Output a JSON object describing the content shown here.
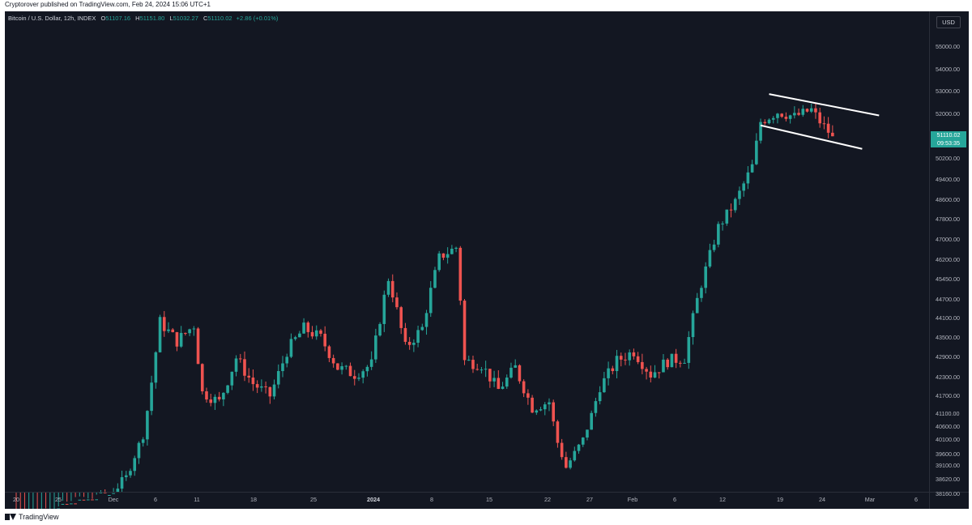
{
  "header": {
    "published_text": "Cryptorover published on TradingView.com, Feb 24, 2024 15:06 UTC+1"
  },
  "legend": {
    "symbol": "Bitcoin / U.S. Dollar, 12h, INDEX",
    "open_label": "O",
    "open": "51107.16",
    "high_label": "H",
    "high": "51151.80",
    "low_label": "L",
    "low": "51032.27",
    "close_label": "C",
    "close": "51110.02",
    "change": "+2.86 (+0.01%)"
  },
  "price_axis": {
    "currency": "USD",
    "labels": [
      "55000.00",
      "54000.00",
      "53000.00",
      "52000.00",
      "50200.00",
      "49400.00",
      "48600.00",
      "47800.00",
      "47000.00",
      "46200.00",
      "45450.00",
      "44700.00",
      "44100.00",
      "43500.00",
      "42900.00",
      "42300.00",
      "41700.00",
      "41100.00",
      "40600.00",
      "40100.00",
      "39600.00",
      "39100.00",
      "38620.00",
      "38160.00"
    ],
    "last_price": "51110.02",
    "countdown": "09:53:35"
  },
  "time_axis": {
    "labels": [
      "20",
      "25",
      "Dec",
      "6",
      "11",
      "18",
      "25",
      "2024",
      "8",
      "15",
      "22",
      "27",
      "Feb",
      "6",
      "12",
      "19",
      "24",
      "Mar",
      "6"
    ]
  },
  "colors": {
    "up": "#26a69a",
    "down": "#ef5350",
    "background": "#131722",
    "channel_lines": "#ffffff"
  },
  "footer": {
    "brand": "TradingView",
    "logo_icon": "tradingview-logo-icon"
  },
  "chart_data": {
    "type": "candlestick",
    "title": "",
    "symbol": "Bitcoin / U.S. Dollar",
    "timeframe": "12h",
    "x_range": [
      "2023-11-19",
      "2024-02-24"
    ],
    "ylim": [
      38160,
      55500
    ],
    "y_scale": "log",
    "close_path": [
      {
        "t": 0,
        "c": 37200
      },
      {
        "t": 22,
        "c": 38150
      },
      {
        "t": 26,
        "c": 38700
      },
      {
        "t": 30,
        "c": 40300
      },
      {
        "t": 34,
        "c": 44000
      },
      {
        "t": 38,
        "c": 43400
      },
      {
        "t": 42,
        "c": 43900
      },
      {
        "t": 44,
        "c": 41800
      },
      {
        "t": 48,
        "c": 41500
      },
      {
        "t": 52,
        "c": 42900
      },
      {
        "t": 56,
        "c": 42100
      },
      {
        "t": 60,
        "c": 41700
      },
      {
        "t": 64,
        "c": 43100
      },
      {
        "t": 68,
        "c": 43800
      },
      {
        "t": 72,
        "c": 43500
      },
      {
        "t": 76,
        "c": 42600
      },
      {
        "t": 80,
        "c": 42400
      },
      {
        "t": 84,
        "c": 42700
      },
      {
        "t": 88,
        "c": 45500
      },
      {
        "t": 92,
        "c": 43200
      },
      {
        "t": 96,
        "c": 43800
      },
      {
        "t": 100,
        "c": 46300
      },
      {
        "t": 104,
        "c": 46700
      },
      {
        "t": 106,
        "c": 42800
      },
      {
        "t": 110,
        "c": 42700
      },
      {
        "t": 114,
        "c": 41900
      },
      {
        "t": 118,
        "c": 42600
      },
      {
        "t": 122,
        "c": 41300
      },
      {
        "t": 126,
        "c": 41500
      },
      {
        "t": 128,
        "c": 40000
      },
      {
        "t": 130,
        "c": 39050
      },
      {
        "t": 134,
        "c": 40100
      },
      {
        "t": 138,
        "c": 42000
      },
      {
        "t": 142,
        "c": 42800
      },
      {
        "t": 146,
        "c": 43100
      },
      {
        "t": 150,
        "c": 42400
      },
      {
        "t": 154,
        "c": 42800
      },
      {
        "t": 158,
        "c": 42900
      },
      {
        "t": 162,
        "c": 45300
      },
      {
        "t": 166,
        "c": 47500
      },
      {
        "t": 170,
        "c": 48500
      },
      {
        "t": 174,
        "c": 49900
      },
      {
        "t": 176,
        "c": 51700
      },
      {
        "t": 180,
        "c": 52100
      },
      {
        "t": 184,
        "c": 51900
      },
      {
        "t": 188,
        "c": 52200
      },
      {
        "t": 190,
        "c": 51700
      },
      {
        "t": 192,
        "c": 51300
      },
      {
        "t": 193,
        "c": 51110
      }
    ],
    "channel": [
      {
        "from": {
          "t": 178,
          "price": 52900
        },
        "to": {
          "t": 204,
          "price": 51950
        }
      },
      {
        "from": {
          "t": 176,
          "price": 51550
        },
        "to": {
          "t": 200,
          "price": 50600
        }
      }
    ]
  }
}
